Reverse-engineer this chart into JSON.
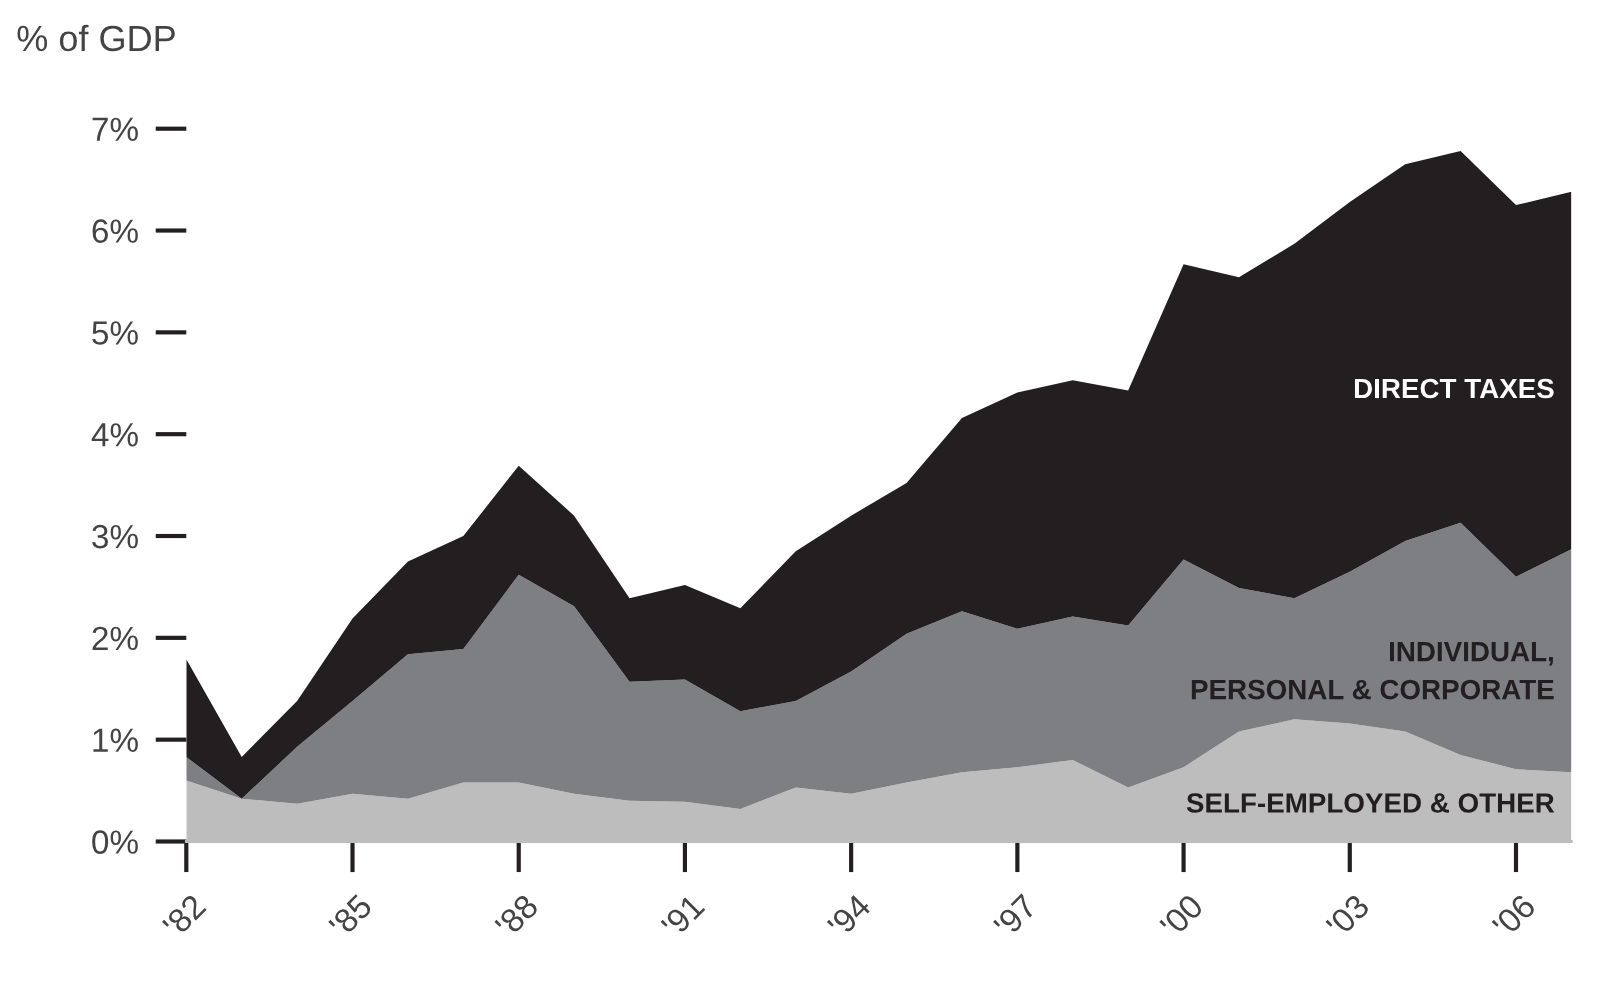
{
  "chart_data": {
    "type": "area",
    "stacked": true,
    "ylabel": "% of GDP",
    "x": [
      1982,
      1983,
      1984,
      1985,
      1986,
      1987,
      1988,
      1989,
      1990,
      1991,
      1992,
      1993,
      1994,
      1995,
      1996,
      1997,
      1998,
      1999,
      2000,
      2001,
      2002,
      2003,
      2004,
      2005,
      2006,
      2007
    ],
    "series": [
      {
        "name": "SELF-EMPLOYED & OTHER",
        "color": "#bdbdbd",
        "values": [
          0.6,
          0.42,
          0.37,
          0.47,
          0.42,
          0.58,
          0.58,
          0.47,
          0.4,
          0.39,
          0.32,
          0.53,
          0.47,
          0.58,
          0.68,
          0.73,
          0.8,
          0.53,
          0.73,
          1.08,
          1.2,
          1.16,
          1.08,
          0.85,
          0.71,
          0.68
        ]
      },
      {
        "name": "INDIVIDUAL,\nPERSONAL & CORPORATE",
        "color": "#7e7f83",
        "values": [
          0.23,
          0.0,
          0.56,
          0.91,
          1.42,
          1.31,
          2.04,
          1.84,
          1.17,
          1.2,
          0.96,
          0.85,
          1.2,
          1.46,
          1.58,
          1.36,
          1.41,
          1.59,
          2.04,
          1.41,
          1.19,
          1.49,
          1.87,
          2.28,
          1.89,
          2.19
        ]
      },
      {
        "name": "DIRECT TAXES",
        "color": "#231f20",
        "values": [
          0.96,
          0.41,
          0.45,
          0.81,
          0.91,
          1.11,
          1.07,
          0.89,
          0.82,
          0.93,
          1.01,
          1.47,
          1.53,
          1.48,
          1.9,
          2.32,
          2.32,
          2.31,
          2.9,
          3.05,
          3.48,
          3.63,
          3.7,
          3.65,
          3.65,
          3.51
        ]
      }
    ],
    "xlim": [
      1982,
      2007
    ],
    "ylim": [
      0,
      7
    ],
    "xticks": [
      {
        "value": 1982,
        "label": "'82"
      },
      {
        "value": 1985,
        "label": "'85"
      },
      {
        "value": 1988,
        "label": "'88"
      },
      {
        "value": 1991,
        "label": "'91"
      },
      {
        "value": 1994,
        "label": "'94"
      },
      {
        "value": 1997,
        "label": "'97"
      },
      {
        "value": 2000,
        "label": "'00"
      },
      {
        "value": 2003,
        "label": "'03"
      },
      {
        "value": 2006,
        "label": "'06"
      }
    ],
    "yticks": [
      {
        "value": 0,
        "label": "0%"
      },
      {
        "value": 1,
        "label": "1%"
      },
      {
        "value": 2,
        "label": "2%"
      },
      {
        "value": 3,
        "label": "3%"
      },
      {
        "value": 4,
        "label": "4%"
      },
      {
        "value": 5,
        "label": "5%"
      },
      {
        "value": 6,
        "label": "6%"
      },
      {
        "value": 7,
        "label": "7%"
      }
    ],
    "grid": false,
    "legend": false
  }
}
